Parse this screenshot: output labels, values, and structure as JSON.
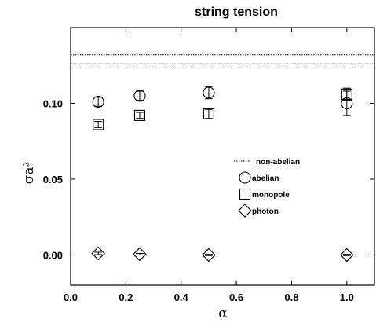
{
  "chart_data": {
    "type": "scatter",
    "title": "string tension",
    "xlabel": "α",
    "ylabel": "σa²",
    "xlim": [
      0.0,
      1.1
    ],
    "ylim": [
      -0.02,
      0.15
    ],
    "x_ticks": [
      "0.0",
      "0.2",
      "0.4",
      "0.6",
      "0.8",
      "1.0"
    ],
    "y_ticks": [
      "0.00",
      "0.05",
      "0.10"
    ],
    "legend_position": "center-right",
    "reference_lines": {
      "name": "non-abelian",
      "values": [
        0.132,
        0.126
      ],
      "style": "dotted"
    },
    "series": [
      {
        "name": "abelian",
        "marker": "circle",
        "points": [
          {
            "x": 0.1,
            "y": 0.101,
            "err": 0.003
          },
          {
            "x": 0.25,
            "y": 0.105,
            "err": 0.003
          },
          {
            "x": 0.5,
            "y": 0.107,
            "err": 0.004
          },
          {
            "x": 1.0,
            "y": 0.1,
            "err": 0.008
          }
        ]
      },
      {
        "name": "monopole",
        "marker": "square",
        "points": [
          {
            "x": 0.1,
            "y": 0.086,
            "err": 0.002
          },
          {
            "x": 0.25,
            "y": 0.092,
            "err": 0.002
          },
          {
            "x": 0.5,
            "y": 0.093,
            "err": 0.003
          },
          {
            "x": 1.0,
            "y": 0.106,
            "err": 0.004
          }
        ]
      },
      {
        "name": "photon",
        "marker": "diamond",
        "points": [
          {
            "x": 0.1,
            "y": 0.001,
            "err": 0.0008
          },
          {
            "x": 0.25,
            "y": 0.0005,
            "err": 0.0005
          },
          {
            "x": 0.5,
            "y": 0.0,
            "err": 0.0004
          },
          {
            "x": 1.0,
            "y": 0.0,
            "err": 0.0004
          }
        ]
      }
    ]
  }
}
